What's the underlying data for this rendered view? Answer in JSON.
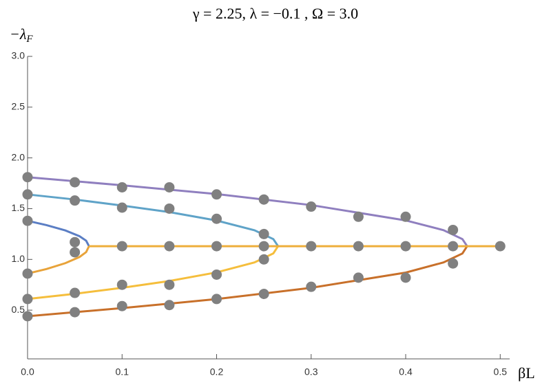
{
  "chart_data": {
    "type": "line",
    "title": "γ = 2.25, λ = −0.1 , Ω = 3.0",
    "y_label": {
      "symbol": "−λ",
      "subscript": "F"
    },
    "x_label": "βL",
    "xlim": [
      0,
      0.51
    ],
    "ylim": [
      0.02,
      3.0
    ],
    "xticks": [
      {
        "value": 0,
        "label": "0.0"
      },
      0.1,
      0.2,
      0.3,
      0.4,
      0.5
    ],
    "yticks": [
      0.5,
      {
        "value": 1,
        "label": "1.0"
      },
      1.5,
      {
        "value": 2,
        "label": "2.0"
      },
      2.5,
      {
        "value": 3,
        "label": "3.0"
      }
    ],
    "series": [
      {
        "color": "#8f7fbf",
        "x": [
          0,
          0.1,
          0.2,
          0.3,
          0.4,
          0.44,
          0.46,
          0.465
        ],
        "values": [
          1.81,
          1.73,
          1.644,
          1.535,
          1.384,
          1.288,
          1.2,
          1.13
        ]
      },
      {
        "color": "#c8702a",
        "x": [
          0,
          0.1,
          0.2,
          0.3,
          0.4,
          0.44,
          0.46,
          0.465
        ],
        "values": [
          0.44,
          0.52,
          0.609,
          0.72,
          0.87,
          0.97,
          1.058,
          1.13
        ]
      },
      {
        "color": "#5fa3c8",
        "x": [
          0,
          0.05,
          0.1,
          0.15,
          0.2,
          0.24,
          0.26,
          0.265
        ],
        "values": [
          1.64,
          1.59,
          1.53,
          1.466,
          1.383,
          1.287,
          1.2,
          1.13
        ]
      },
      {
        "color": "#f5be3c",
        "x": [
          0,
          0.05,
          0.1,
          0.15,
          0.2,
          0.24,
          0.26,
          0.265
        ],
        "values": [
          0.61,
          0.661,
          0.72,
          0.787,
          0.872,
          0.97,
          1.059,
          1.13
        ]
      },
      {
        "color": "#5b7ec4",
        "x": [
          0,
          0.02,
          0.04,
          0.055,
          0.062,
          0.065
        ],
        "values": [
          1.38,
          1.338,
          1.285,
          1.228,
          1.184,
          1.13
        ]
      },
      {
        "color": "#e8a33a",
        "x": [
          0,
          0.02,
          0.04,
          0.055,
          0.062,
          0.065
        ],
        "values": [
          0.86,
          0.905,
          0.963,
          1.024,
          1.072,
          1.13
        ]
      },
      {
        "color": "#eeae3a",
        "x": [
          0.065,
          0.5
        ],
        "values": [
          1.13,
          1.13
        ]
      },
      {
        "type": "scatter",
        "color": "#808080",
        "x": [
          0,
          0,
          0,
          0,
          0,
          0,
          0.05,
          0.05,
          0.05,
          0.05,
          0.05,
          0.05,
          0.1,
          0.1,
          0.1,
          0.1,
          0.1,
          0.15,
          0.15,
          0.15,
          0.15,
          0.15,
          0.2,
          0.2,
          0.2,
          0.2,
          0.2,
          0.25,
          0.25,
          0.25,
          0.25,
          0.25,
          0.3,
          0.3,
          0.3,
          0.35,
          0.35,
          0.35,
          0.4,
          0.4,
          0.4,
          0.45,
          0.45,
          0.45,
          0.5
        ],
        "values": [
          1.81,
          1.64,
          1.38,
          0.86,
          0.61,
          0.44,
          1.76,
          1.58,
          1.17,
          1.07,
          0.67,
          0.48,
          1.71,
          1.51,
          1.13,
          0.75,
          0.54,
          1.71,
          1.5,
          1.13,
          0.75,
          0.55,
          1.64,
          1.4,
          1.13,
          0.85,
          0.61,
          1.59,
          1.25,
          1.13,
          1.0,
          0.66,
          1.52,
          1.13,
          0.73,
          1.42,
          1.13,
          0.82,
          1.42,
          1.13,
          0.82,
          1.29,
          1.13,
          0.96,
          1.13
        ]
      }
    ]
  }
}
